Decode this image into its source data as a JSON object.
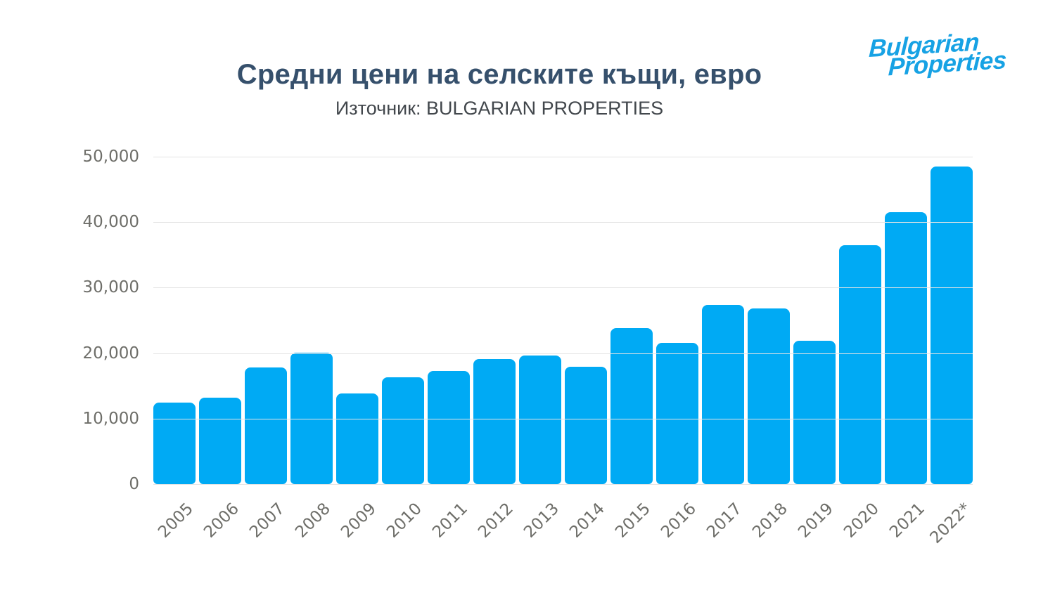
{
  "header": {
    "title": "Средни цени на селските къщи, евро",
    "subtitle": "Източник: BULGARIAN PROPERTIES"
  },
  "logo": {
    "line1": "Bulgarian",
    "line2": "Properties"
  },
  "colors": {
    "background": "#ffffff",
    "bar": "#00aaf4",
    "title": "#36506c",
    "subtitle": "#42474c",
    "axis_label": "#6e6e69",
    "gridline": "#e4e4e4",
    "logo_blue": "#17a2e4"
  },
  "chart_data": {
    "type": "bar",
    "title": "Средни цени на селските къщи, евро",
    "source": "Източник: BULGARIAN PROPERTIES",
    "categories": [
      "2005",
      "2006",
      "2007",
      "2008",
      "2009",
      "2010",
      "2011",
      "2012",
      "2013",
      "2014",
      "2015",
      "2016",
      "2017",
      "2018",
      "2019",
      "2020",
      "2021",
      "2022*"
    ],
    "values": [
      12400,
      13200,
      17800,
      20100,
      13800,
      16300,
      17300,
      19100,
      19600,
      17900,
      23800,
      21600,
      27400,
      26800,
      21900,
      36500,
      41500,
      48500
    ],
    "xlabel": "",
    "ylabel": "",
    "ylim": [
      0,
      50000
    ],
    "ytick_interval": 10000,
    "ytick_labels": [
      "0",
      "10,000",
      "20,000",
      "30,000",
      "40,000",
      "50,000"
    ],
    "grid": true,
    "legend": "none",
    "bar_color": "#00aaf4"
  }
}
